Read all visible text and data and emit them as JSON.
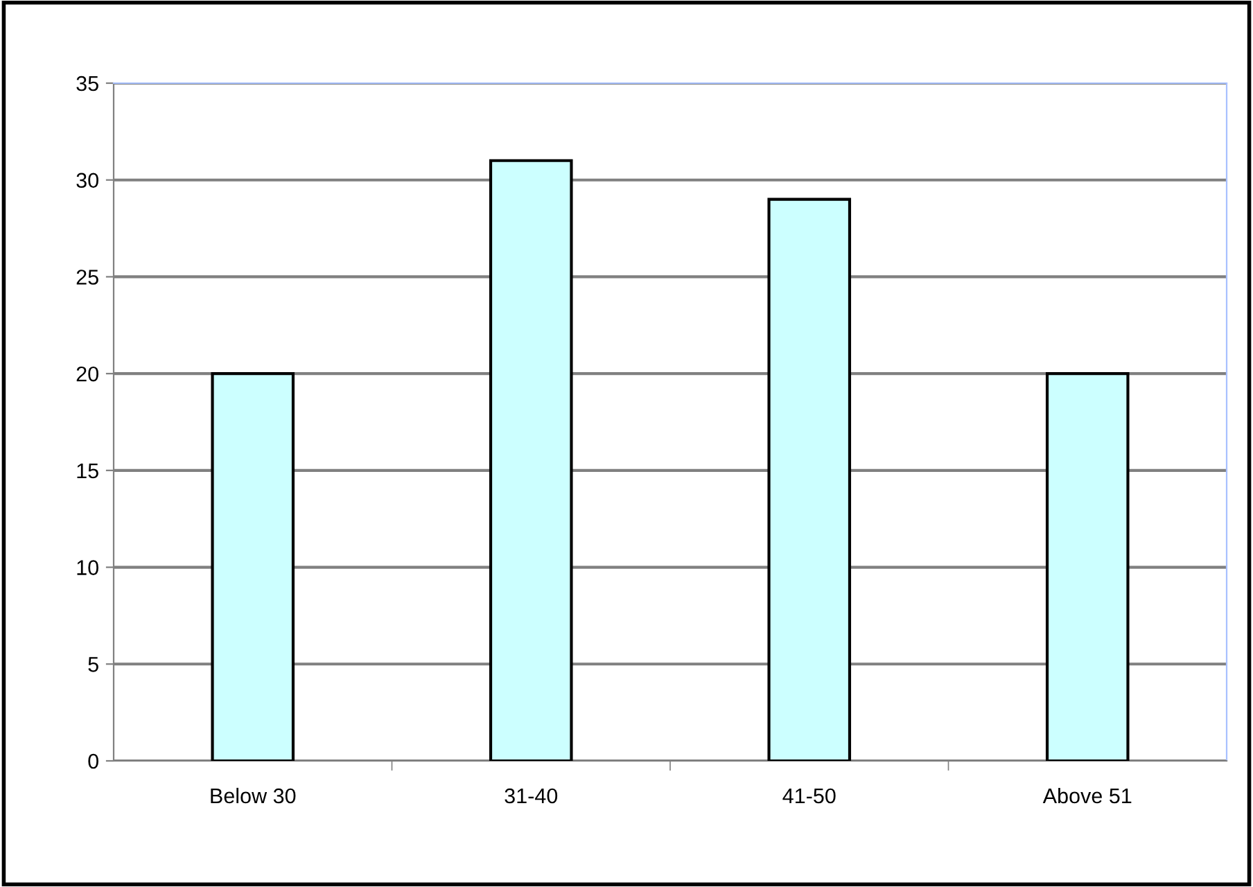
{
  "chart_data": {
    "type": "bar",
    "categories": [
      "Below 30",
      "31-40",
      "41-50",
      "Above 51"
    ],
    "values": [
      20,
      31,
      29,
      20
    ],
    "color": "#ccffff",
    "ylim": [
      0,
      35
    ],
    "yticks": [
      0,
      5,
      10,
      15,
      20,
      25,
      30,
      35
    ],
    "grid": "y",
    "legend": false
  }
}
